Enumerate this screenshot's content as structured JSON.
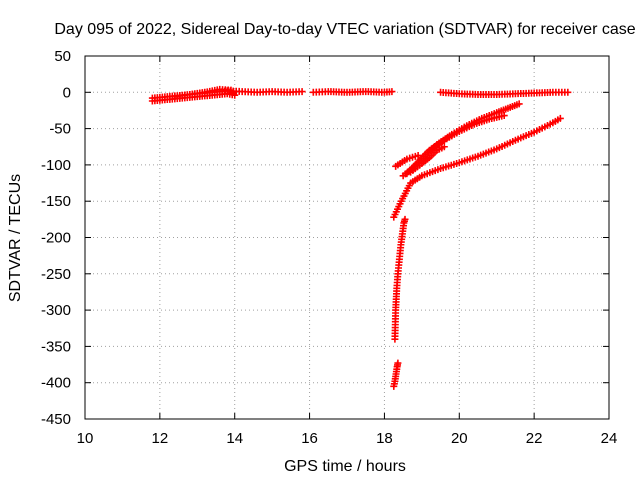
{
  "chart_data": {
    "type": "scatter",
    "title": "Day 095 of 2022, Sidereal Day-to-day VTEC variation (SDTVAR) for receiver case",
    "xlabel": "GPS time / hours",
    "ylabel": "SDTVAR / TECUs",
    "xlim": [
      10,
      24
    ],
    "ylim": [
      -450,
      50
    ],
    "xticks": [
      10,
      12,
      14,
      16,
      18,
      20,
      22,
      24
    ],
    "yticks": [
      50,
      0,
      -50,
      -100,
      -150,
      -200,
      -250,
      -300,
      -350,
      -400,
      -450
    ],
    "grid": true,
    "marker": "+",
    "color": "#ff0000",
    "series": [
      {
        "segments": [
          [
            [
              11.8,
              -8
            ],
            [
              12.2,
              -6
            ],
            [
              12.6,
              -4
            ],
            [
              13.0,
              -2
            ],
            [
              13.4,
              0
            ],
            [
              13.8,
              2
            ],
            [
              14.2,
              1
            ],
            [
              14.6,
              0
            ],
            [
              15.0,
              1
            ],
            [
              15.4,
              0
            ],
            [
              15.8,
              1
            ]
          ],
          [
            [
              11.8,
              -12
            ],
            [
              12.2,
              -10
            ],
            [
              12.6,
              -8
            ],
            [
              13.0,
              -6
            ],
            [
              13.4,
              -4
            ],
            [
              13.8,
              -2
            ],
            [
              14.0,
              -4
            ]
          ],
          [
            [
              12.4,
              -6
            ],
            [
              12.8,
              -3
            ],
            [
              13.2,
              0
            ],
            [
              13.6,
              4
            ],
            [
              13.9,
              3
            ]
          ],
          [
            [
              16.1,
              0
            ],
            [
              16.5,
              1
            ],
            [
              17.0,
              0
            ],
            [
              17.5,
              1
            ],
            [
              18.0,
              0
            ],
            [
              18.2,
              1
            ]
          ],
          [
            [
              19.5,
              0
            ],
            [
              20.0,
              -2
            ],
            [
              20.5,
              -3
            ],
            [
              21.0,
              -3
            ],
            [
              21.5,
              -2
            ],
            [
              22.0,
              -1
            ],
            [
              22.5,
              0
            ],
            [
              22.9,
              0
            ]
          ],
          [
            [
              18.25,
              -172
            ],
            [
              18.45,
              -150
            ],
            [
              18.7,
              -125
            ],
            [
              19.0,
              -115
            ],
            [
              19.5,
              -105
            ],
            [
              20.0,
              -97
            ],
            [
              20.5,
              -88
            ],
            [
              21.0,
              -78
            ],
            [
              21.5,
              -66
            ],
            [
              22.0,
              -55
            ],
            [
              22.5,
              -42
            ],
            [
              22.7,
              -36
            ]
          ],
          [
            [
              18.3,
              -102
            ],
            [
              18.6,
              -92
            ],
            [
              18.9,
              -87
            ]
          ],
          [
            [
              18.5,
              -115
            ],
            [
              18.8,
              -102
            ],
            [
              19.1,
              -85
            ],
            [
              19.4,
              -72
            ],
            [
              19.8,
              -58
            ],
            [
              20.2,
              -46
            ],
            [
              20.6,
              -36
            ],
            [
              21.0,
              -28
            ],
            [
              21.3,
              -22
            ],
            [
              21.6,
              -16
            ]
          ],
          [
            [
              18.6,
              -112
            ],
            [
              18.9,
              -96
            ],
            [
              19.2,
              -80
            ],
            [
              19.6,
              -66
            ],
            [
              20.0,
              -54
            ],
            [
              20.4,
              -44
            ],
            [
              20.8,
              -37
            ],
            [
              21.2,
              -32
            ]
          ],
          [
            [
              18.7,
              -110
            ],
            [
              19.0,
              -98
            ],
            [
              19.2,
              -90
            ],
            [
              19.4,
              -80
            ],
            [
              19.6,
              -75
            ]
          ],
          [
            [
              18.28,
              -340
            ],
            [
              18.3,
              -300
            ],
            [
              18.33,
              -270
            ],
            [
              18.36,
              -250
            ],
            [
              18.4,
              -230
            ],
            [
              18.44,
              -210
            ],
            [
              18.48,
              -195
            ],
            [
              18.52,
              -180
            ],
            [
              18.55,
              -175
            ]
          ],
          [
            [
              18.25,
              -405
            ],
            [
              18.28,
              -398
            ],
            [
              18.31,
              -388
            ],
            [
              18.34,
              -378
            ],
            [
              18.36,
              -373
            ]
          ]
        ]
      }
    ]
  }
}
